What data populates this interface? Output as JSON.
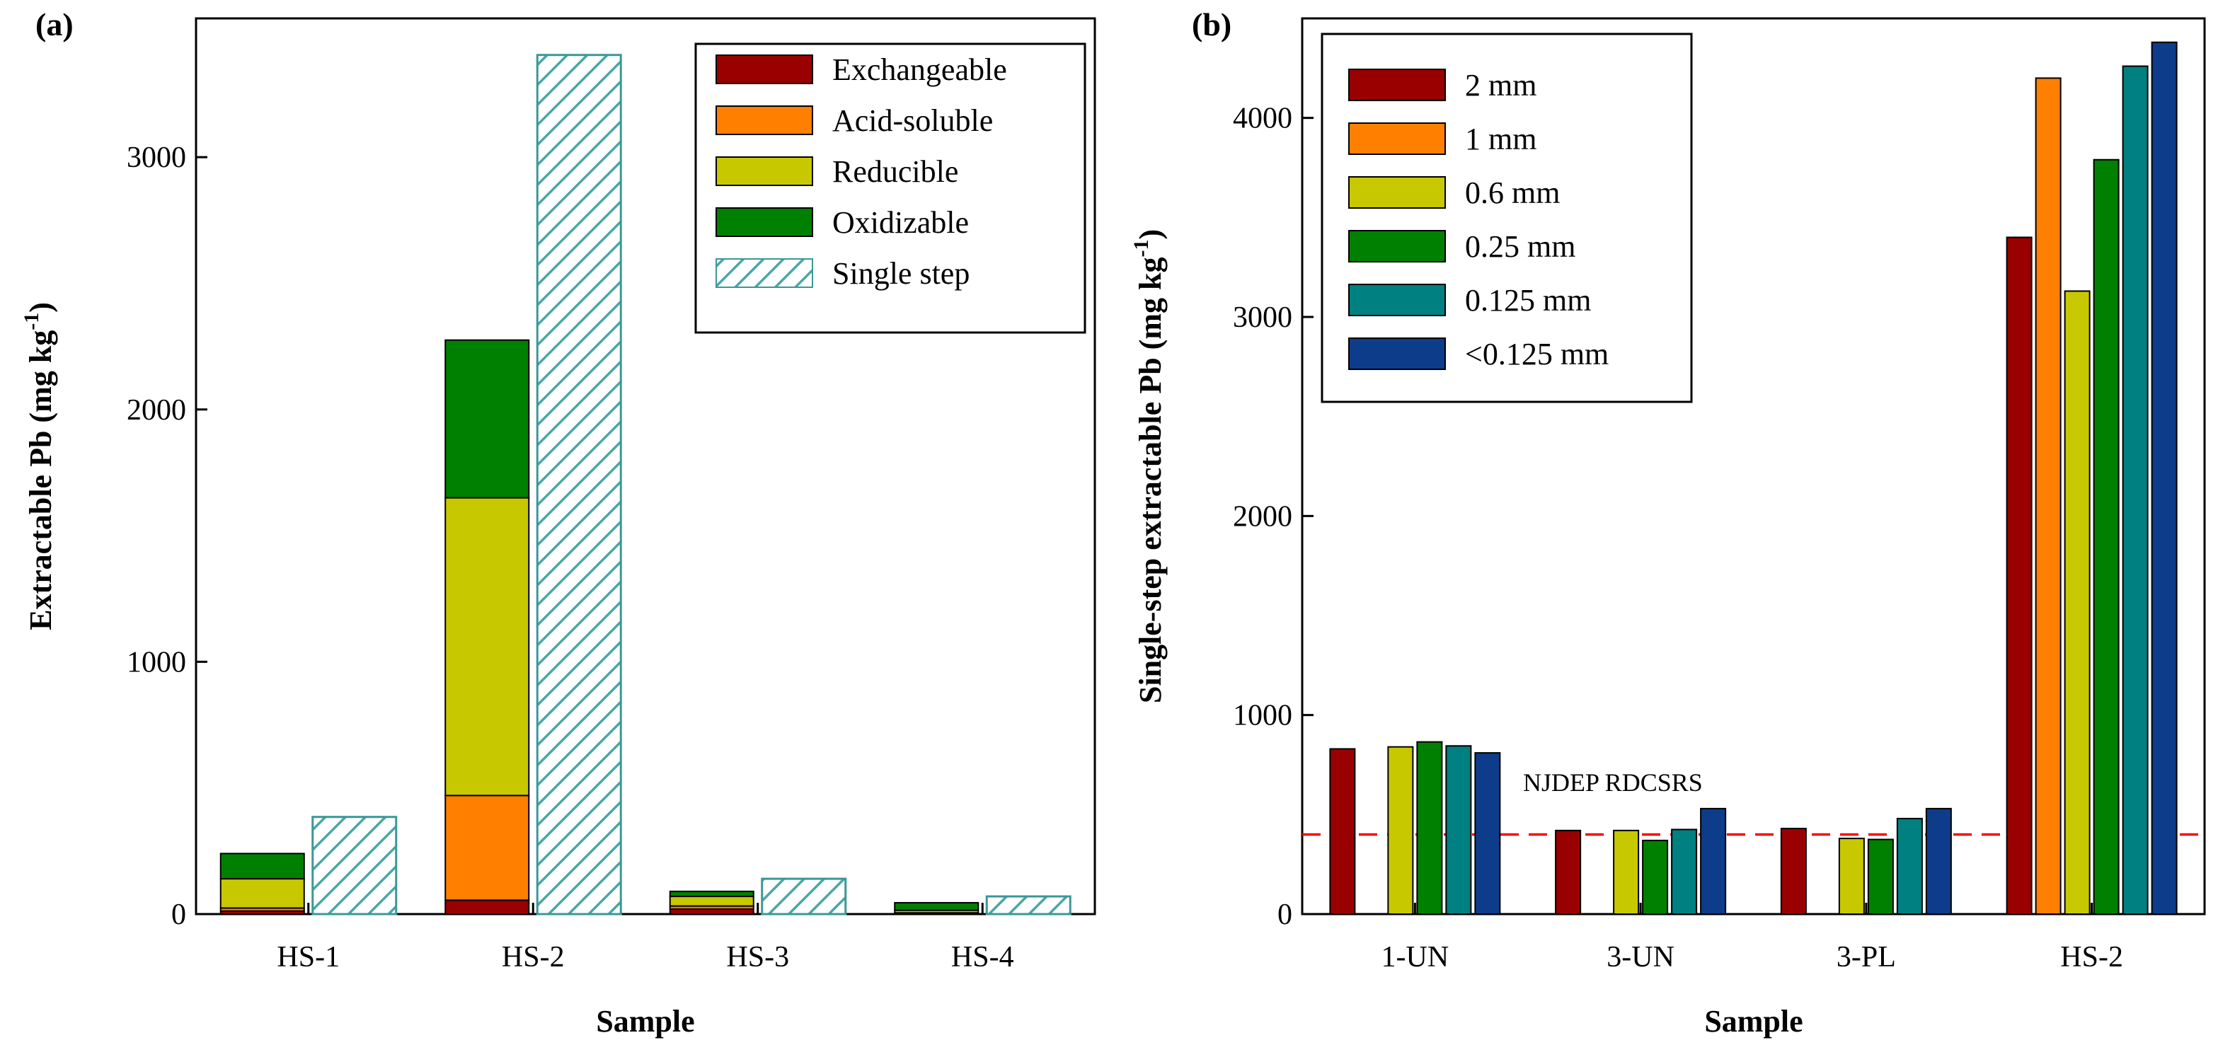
{
  "chart_data": [
    {
      "panel": "(a)",
      "type": "bar",
      "subtype": "stacked + single",
      "categories": [
        "HS-1",
        "HS-2",
        "HS-3",
        "HS-4"
      ],
      "xlabel": "Sample",
      "ylabel_main": "Extractable Pb (mg kg",
      "ylabel_sup": "-1",
      "ylabel_tail": ")",
      "ylim": [
        0,
        3550
      ],
      "yticks": [
        0,
        1000,
        2000,
        3000
      ],
      "stacked_series": [
        {
          "name": "Exchangeable",
          "color": "#990000",
          "values": [
            12,
            55,
            20,
            2
          ]
        },
        {
          "name": "Acid-soluble",
          "color": "#ff8000",
          "values": [
            12,
            415,
            12,
            3
          ]
        },
        {
          "name": "Reducible",
          "color": "#c8c800",
          "values": [
            116,
            1180,
            38,
            10
          ]
        },
        {
          "name": "Oxidizable",
          "color": "#008000",
          "values": [
            100,
            625,
            20,
            30
          ]
        }
      ],
      "single_series": {
        "name": "Single step",
        "color": "#4aa6a6",
        "values": [
          385,
          3405,
          140,
          70
        ]
      },
      "legend_position": "top-right"
    },
    {
      "panel": "(b)",
      "type": "bar",
      "subtype": "grouped",
      "categories": [
        "1-UN",
        "3-UN",
        "3-PL",
        "HS-2"
      ],
      "xlabel": "Sample",
      "ylabel_main": "Single-step extractable Pb (mg kg",
      "ylabel_sup": "-1",
      "ylabel_tail": ")",
      "ylim": [
        0,
        4500
      ],
      "yticks": [
        0,
        1000,
        2000,
        3000,
        4000
      ],
      "series": [
        {
          "name": "2 mm",
          "color": "#990000",
          "values": [
            830,
            420,
            430,
            3400
          ]
        },
        {
          "name": "1 mm",
          "color": "#ff8000",
          "values": [
            null,
            null,
            null,
            4200
          ]
        },
        {
          "name": "0.6 mm",
          "color": "#c8c800",
          "values": [
            840,
            420,
            380,
            3130
          ]
        },
        {
          "name": "0.25 mm",
          "color": "#008000",
          "values": [
            865,
            370,
            375,
            3790
          ]
        },
        {
          "name": "0.125 mm",
          "color": "#008080",
          "values": [
            845,
            425,
            480,
            4260
          ]
        },
        {
          "name": "<0.125 mm",
          "color": "#0d3d8a",
          "values": [
            810,
            530,
            530,
            4380
          ]
        }
      ],
      "reference_line": {
        "label": "NJDEP RDCSRS",
        "value": 400,
        "color": "#ff0000"
      },
      "legend_position": "top-left"
    }
  ]
}
